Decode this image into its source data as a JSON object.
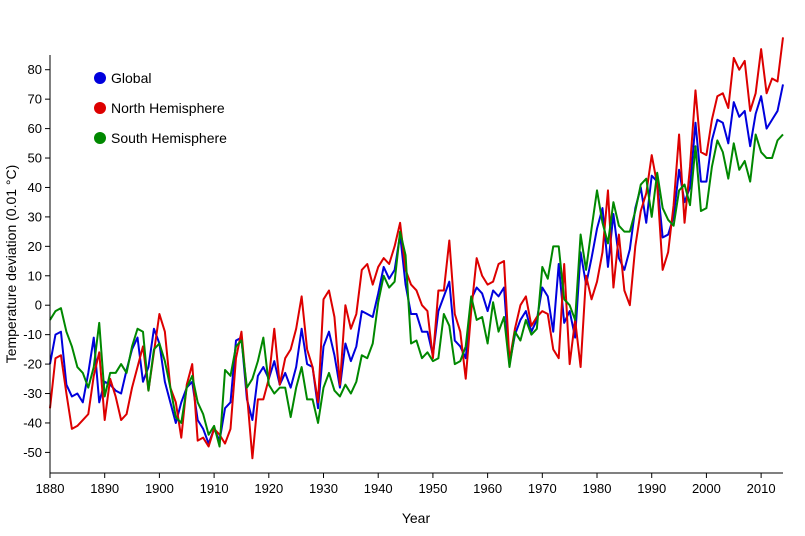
{
  "chart_data": {
    "type": "line",
    "title": "",
    "xlabel": "Year",
    "ylabel": "Temperature deviation (0.01 °C)",
    "xlim": [
      1880,
      2014
    ],
    "ylim": [
      -57,
      85
    ],
    "xticks": [
      1880,
      1890,
      1900,
      1910,
      1920,
      1930,
      1940,
      1950,
      1960,
      1970,
      1980,
      1990,
      2000,
      2010
    ],
    "yticks": [
      -50,
      -40,
      -30,
      -20,
      -10,
      0,
      10,
      20,
      30,
      40,
      50,
      60,
      70,
      80
    ],
    "grid": false,
    "legend_position": "top-left",
    "x": [
      1880,
      1881,
      1882,
      1883,
      1884,
      1885,
      1886,
      1887,
      1888,
      1889,
      1890,
      1891,
      1892,
      1893,
      1894,
      1895,
      1896,
      1897,
      1898,
      1899,
      1900,
      1901,
      1902,
      1903,
      1904,
      1905,
      1906,
      1907,
      1908,
      1909,
      1910,
      1911,
      1912,
      1913,
      1914,
      1915,
      1916,
      1917,
      1918,
      1919,
      1920,
      1921,
      1922,
      1923,
      1924,
      1925,
      1926,
      1927,
      1928,
      1929,
      1930,
      1931,
      1932,
      1933,
      1934,
      1935,
      1936,
      1937,
      1938,
      1939,
      1940,
      1941,
      1942,
      1943,
      1944,
      1945,
      1946,
      1947,
      1948,
      1949,
      1950,
      1951,
      1952,
      1953,
      1954,
      1955,
      1956,
      1957,
      1958,
      1959,
      1960,
      1961,
      1962,
      1963,
      1964,
      1965,
      1966,
      1967,
      1968,
      1969,
      1970,
      1971,
      1972,
      1973,
      1974,
      1975,
      1976,
      1977,
      1978,
      1979,
      1980,
      1981,
      1982,
      1983,
      1984,
      1985,
      1986,
      1987,
      1988,
      1989,
      1990,
      1991,
      1992,
      1993,
      1994,
      1995,
      1996,
      1997,
      1998,
      1999,
      2000,
      2001,
      2002,
      2003,
      2004,
      2005,
      2006,
      2007,
      2008,
      2009,
      2010,
      2011,
      2012,
      2013,
      2014
    ],
    "series": [
      {
        "name": "Global",
        "color": "#0000dd",
        "values": [
          -20,
          -10,
          -9,
          -27,
          -31,
          -30,
          -33,
          -23,
          -11,
          -33,
          -26,
          -27,
          -29,
          -30,
          -22,
          -15,
          -11,
          -26,
          -21,
          -8,
          -13,
          -26,
          -33,
          -40,
          -33,
          -28,
          -26,
          -39,
          -42,
          -47,
          -42,
          -46,
          -35,
          -33,
          -12,
          -11,
          -32,
          -39,
          -24,
          -21,
          -25,
          -19,
          -27,
          -23,
          -28,
          -21,
          -8,
          -20,
          -21,
          -35,
          -14,
          -9,
          -17,
          -28,
          -13,
          -19,
          -14,
          -2,
          -3,
          -4,
          4,
          13,
          9,
          12,
          24,
          7,
          -3,
          -3,
          -9,
          -9,
          -17,
          -2,
          3,
          8,
          -12,
          -14,
          -18,
          2,
          6,
          4,
          -2,
          5,
          3,
          6,
          -20,
          -10,
          -5,
          -2,
          -9,
          -5,
          6,
          3,
          -9,
          14,
          -6,
          -2,
          -11,
          18,
          7,
          16,
          26,
          33,
          13,
          31,
          16,
          12,
          19,
          33,
          40,
          28,
          44,
          42,
          23,
          24,
          30,
          46,
          35,
          40,
          62,
          42,
          42,
          56,
          63,
          62,
          55,
          69,
          64,
          66,
          54,
          65,
          71,
          60,
          63,
          66,
          75
        ]
      },
      {
        "name": "North Hemisphere",
        "color": "#dd0000",
        "values": [
          -35,
          -18,
          -17,
          -30,
          -42,
          -41,
          -39,
          -37,
          -24,
          -16,
          -39,
          -25,
          -31,
          -39,
          -37,
          -28,
          -21,
          -14,
          -29,
          -16,
          -3,
          -9,
          -28,
          -33,
          -45,
          -27,
          -20,
          -46,
          -45,
          -48,
          -42,
          -44,
          -47,
          -42,
          -18,
          -9,
          -30,
          -52,
          -32,
          -32,
          -25,
          -8,
          -27,
          -18,
          -15,
          -8,
          3,
          -15,
          -21,
          -33,
          2,
          5,
          -4,
          -27,
          0,
          -8,
          -3,
          12,
          14,
          7,
          13,
          16,
          14,
          20,
          28,
          12,
          7,
          5,
          0,
          -2,
          -18,
          5,
          5,
          22,
          -3,
          -9,
          -25,
          -2,
          16,
          10,
          7,
          8,
          14,
          15,
          -19,
          -8,
          0,
          3,
          -7,
          -4,
          -2,
          -3,
          -15,
          -18,
          14,
          -20,
          -5,
          -21,
          10,
          2,
          8,
          18,
          39,
          6,
          24,
          5,
          0,
          20,
          32,
          38,
          51,
          41,
          12,
          18,
          34,
          58,
          28,
          47,
          73,
          52,
          51,
          63,
          71,
          72,
          67,
          84,
          80,
          83,
          66,
          72,
          87,
          72,
          77,
          76,
          91
        ]
      },
      {
        "name": "South Hemisphere",
        "color": "#008800",
        "values": [
          -5,
          -2,
          -1,
          -9,
          -14,
          -21,
          -23,
          -28,
          -21,
          -6,
          -31,
          -23,
          -23,
          -20,
          -23,
          -14,
          -8,
          -9,
          -29,
          -15,
          -13,
          -19,
          -28,
          -38,
          -40,
          -28,
          -24,
          -33,
          -37,
          -44,
          -41,
          -48,
          -22,
          -24,
          -14,
          -12,
          -28,
          -25,
          -19,
          -11,
          -27,
          -30,
          -28,
          -28,
          -38,
          -28,
          -21,
          -32,
          -32,
          -40,
          -28,
          -23,
          -29,
          -31,
          -27,
          -30,
          -26,
          -17,
          -18,
          -13,
          1,
          10,
          6,
          8,
          25,
          17,
          -13,
          -12,
          -18,
          -16,
          -19,
          -18,
          -3,
          -7,
          -20,
          -19,
          -14,
          3,
          -5,
          -4,
          -13,
          1,
          -9,
          -4,
          -21,
          -9,
          -12,
          -5,
          -10,
          -8,
          13,
          9,
          20,
          20,
          2,
          0,
          -5,
          24,
          12,
          26,
          39,
          28,
          21,
          35,
          27,
          25,
          25,
          32,
          41,
          43,
          30,
          45,
          33,
          29,
          27,
          39,
          41,
          34,
          54,
          32,
          33,
          47,
          56,
          52,
          43,
          55,
          46,
          49,
          42,
          58,
          52,
          50,
          50,
          56,
          58
        ]
      }
    ]
  }
}
